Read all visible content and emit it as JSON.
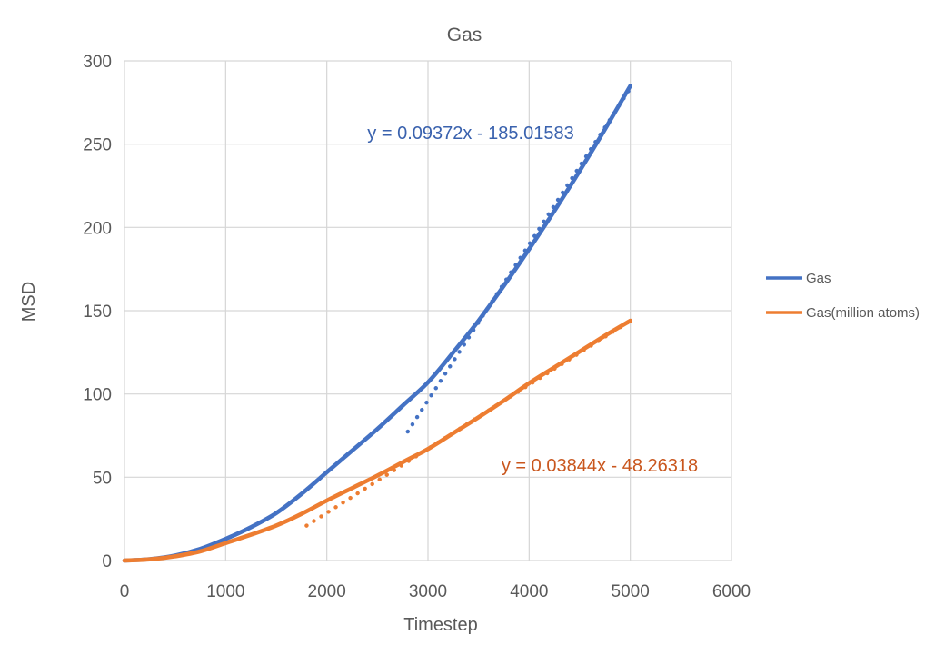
{
  "chart_data": {
    "type": "line",
    "title": "Gas",
    "xlabel": "Timestep",
    "ylabel": "MSD",
    "xlim": [
      0,
      6000
    ],
    "ylim": [
      0,
      300
    ],
    "xticks": [
      0,
      1000,
      2000,
      3000,
      4000,
      5000,
      6000
    ],
    "yticks": [
      0,
      50,
      100,
      150,
      200,
      250,
      300
    ],
    "grid": true,
    "legend_position": "right",
    "x": [
      0,
      250,
      500,
      750,
      1000,
      1250,
      1500,
      1750,
      2000,
      2250,
      2500,
      2750,
      3000,
      3250,
      3500,
      3750,
      4000,
      4250,
      4500,
      4750,
      5000
    ],
    "series": [
      {
        "name": "Gas",
        "color": "#4472C4",
        "values": [
          0,
          0.8,
          3,
          7,
          13,
          20,
          28.5,
          40,
          53,
          66,
          79,
          93,
          107,
          125,
          144,
          165,
          187,
          210,
          234,
          259,
          285
        ]
      },
      {
        "name": "Gas(million atoms)",
        "color": "#ED7D31",
        "values": [
          0,
          0.7,
          2.5,
          5.5,
          10.5,
          15.5,
          21,
          28,
          36,
          43.5,
          51,
          59,
          67,
          76.5,
          86,
          96,
          106.5,
          116,
          125.5,
          135,
          144
        ]
      }
    ],
    "trendlines": [
      {
        "series": "Gas",
        "equation": "y = 0.09372x - 185.01583",
        "slope": 0.09372,
        "intercept": -185.01583,
        "x_start": 2800,
        "x_end": 5000,
        "color": "#4472C4",
        "label_color": "#3A62AE",
        "style": "dotted"
      },
      {
        "series": "Gas(million atoms)",
        "equation": "y = 0.03844x - 48.26318",
        "slope": 0.03844,
        "intercept": -48.26318,
        "x_start": 1800,
        "x_end": 5000,
        "color": "#ED7D31",
        "label_color": "#C9561D",
        "style": "dotted"
      }
    ],
    "colors": {
      "gridline": "#D6D6D6",
      "tick_text": "#595959",
      "title_text": "#595959"
    }
  }
}
